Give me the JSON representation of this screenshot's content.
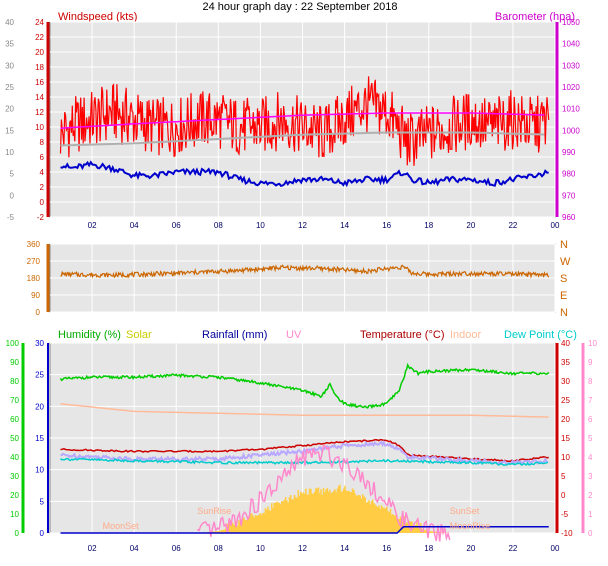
{
  "title": "24 hour graph day : 22 September 2018",
  "chart_data": [
    {
      "type": "line",
      "id": "wind-pressure",
      "labels": {
        "left": "Windspeed (kts)",
        "right": "Barometer (hpa)"
      },
      "left_axis": {
        "range": [
          -2,
          24
        ],
        "ticks": [
          -2,
          0,
          2,
          4,
          6,
          8,
          10,
          12,
          14,
          16,
          18,
          20,
          22,
          24
        ]
      },
      "outer_axis": {
        "range": [
          -5,
          40
        ],
        "ticks": [
          -5,
          0,
          5,
          10,
          15,
          20,
          25,
          30,
          35,
          40
        ]
      },
      "right_axis": {
        "range": [
          960,
          1050
        ],
        "ticks": [
          960,
          970,
          980,
          990,
          1000,
          1010,
          1020,
          1030,
          1040,
          1050
        ],
        "top_tick_label": "1050"
      },
      "x_ticks": [
        "02",
        "04",
        "06",
        "08",
        "10",
        "12",
        "14",
        "16",
        "18",
        "20",
        "22",
        "00"
      ],
      "x_tick_hours": [
        2,
        4,
        6,
        8,
        10,
        12,
        14,
        16,
        18,
        20,
        22,
        24
      ],
      "x_range": [
        0,
        24
      ],
      "grid": true,
      "colors": {
        "gust": "#ff0000",
        "average": "#0000cc",
        "barometer": "#ff00ff",
        "barometer_trend": "#b0b0b0",
        "left_axis": "#cc0000",
        "right_axis": "#cc00cc",
        "outer_axis": "#888888"
      },
      "series": [
        {
          "key": "gust",
          "x": [
            0.5,
            1,
            2,
            3,
            4,
            5,
            6,
            7,
            8,
            9,
            10,
            11,
            12,
            13,
            14,
            15,
            16,
            17,
            18,
            19,
            20,
            21,
            22,
            23,
            23.7
          ],
          "y": [
            9,
            10,
            11,
            12,
            11,
            10,
            10,
            11,
            11,
            10,
            10,
            11,
            10,
            9,
            11,
            13,
            12,
            8,
            9,
            10,
            11,
            10,
            11,
            10,
            11
          ],
          "amp": 4
        },
        {
          "key": "average",
          "x": [
            0.5,
            1,
            2,
            3,
            4,
            5,
            6,
            7,
            8,
            9,
            10,
            11,
            12,
            13,
            14,
            15,
            16,
            16.8,
            17.2,
            18,
            19,
            20,
            21,
            22,
            23,
            23.7
          ],
          "y": [
            5,
            4.5,
            5,
            4.5,
            3.5,
            3.5,
            4,
            4,
            4,
            3,
            2.5,
            2.5,
            3,
            3,
            2.5,
            3,
            3,
            4,
            3,
            2.5,
            3,
            3,
            2.5,
            3,
            3.5,
            4
          ],
          "amp": 0.4
        },
        {
          "key": "barometer",
          "x": [
            0.5,
            4,
            8,
            12,
            16,
            20,
            23.7
          ],
          "y": [
            1001,
            1003,
            1005,
            1007,
            1008,
            1008,
            1007
          ],
          "amp": 0
        },
        {
          "key": "barometer_trend",
          "x": [
            0.5,
            4,
            8,
            12,
            16,
            20,
            23.7
          ],
          "y": [
            993,
            994,
            996,
            998,
            999,
            999,
            998
          ],
          "amp": 0
        }
      ]
    },
    {
      "type": "line",
      "id": "wind-direction",
      "left_axis": {
        "range": [
          0,
          360
        ],
        "ticks": [
          0,
          90,
          180,
          270,
          360
        ]
      },
      "right_labels": [
        "N",
        "W",
        "S",
        "E",
        "N"
      ],
      "x_range": [
        0,
        24
      ],
      "grid": true,
      "colors": {
        "direction": "#cc6600",
        "axis": "#cc6600"
      },
      "series": [
        {
          "key": "direction",
          "x": [
            0.5,
            3,
            6,
            9,
            11,
            13,
            15,
            16.8,
            17.2,
            18,
            20,
            22,
            23.7
          ],
          "y": [
            200,
            195,
            205,
            220,
            235,
            230,
            215,
            240,
            205,
            200,
            205,
            200,
            195
          ],
          "amp": 12
        }
      ]
    },
    {
      "type": "line",
      "id": "temp-humidity",
      "headers": [
        {
          "text": "Humidity (%)",
          "color": "#00aa00"
        },
        {
          "text": "Solar",
          "color": "#cccc00"
        },
        {
          "text": "Rainfall (mm)",
          "color": "#000099"
        },
        {
          "text": "UV",
          "color": "#ff88cc"
        },
        {
          "text": "Temperature (°C)",
          "color": "#aa0000"
        },
        {
          "text": "Indoor",
          "color": "#ffbb99"
        },
        {
          "text": "Dew Point (°C)",
          "color": "#00cccc"
        }
      ],
      "humidity_axis": {
        "range": [
          0,
          100
        ],
        "ticks": [
          0,
          10,
          20,
          30,
          40,
          50,
          60,
          70,
          80,
          90,
          100
        ]
      },
      "temp_axis": {
        "range": [
          -10,
          40
        ],
        "ticks": [
          -10,
          -5,
          0,
          5,
          10,
          15,
          20,
          25,
          30,
          35,
          40
        ]
      },
      "rain_axis": {
        "range": [
          0,
          30
        ],
        "ticks": [
          0,
          5,
          10,
          15,
          20,
          25,
          30
        ]
      },
      "uv_axis": {
        "range": [
          0,
          10
        ],
        "ticks": [
          0,
          1,
          2,
          3,
          4,
          5,
          6,
          7,
          8,
          9,
          10
        ]
      },
      "x_ticks": [
        "02",
        "04",
        "06",
        "08",
        "10",
        "12",
        "14",
        "16",
        "18",
        "20",
        "22",
        "00"
      ],
      "x_tick_hours": [
        2,
        4,
        6,
        8,
        10,
        12,
        14,
        16,
        18,
        20,
        22,
        24
      ],
      "x_range": [
        0,
        24
      ],
      "annotations": [
        {
          "text": "MoonSet",
          "x": 2.5,
          "y": -9
        },
        {
          "text": "SunRise",
          "x": 7,
          "y": -5
        },
        {
          "text": "SunSet",
          "x": 19,
          "y": -5
        },
        {
          "text": "MoonRise",
          "x": 19,
          "y": -9
        }
      ],
      "colors": {
        "humidity": "#00cc00",
        "solar": "#ffcc44",
        "rain": "#0000cc",
        "uv": "#ff88cc",
        "temperature": "#cc0000",
        "indoor": "#ffbb99",
        "dewpoint": "#00cccc",
        "feels": "#b8a8ff"
      },
      "series": [
        {
          "key": "humidity",
          "axis": "humidity",
          "x": [
            0.5,
            2,
            4,
            6,
            8,
            10,
            12,
            12.9,
            13.3,
            13.6,
            14,
            15,
            16,
            16.6,
            17,
            17.5,
            18,
            20,
            22,
            23.7
          ],
          "y": [
            81,
            82,
            82,
            83,
            82,
            79,
            75,
            72,
            78,
            72,
            68,
            66,
            68,
            75,
            88,
            84,
            85,
            86,
            84,
            84
          ],
          "amp": 0.7
        },
        {
          "key": "indoor",
          "axis": "temp",
          "x": [
            0.5,
            4,
            8,
            12,
            16,
            20,
            23.7
          ],
          "y": [
            24,
            22,
            21.5,
            21,
            21,
            21,
            20.5
          ],
          "amp": 0
        },
        {
          "key": "temperature",
          "axis": "temp",
          "x": [
            0.5,
            4,
            8,
            10,
            12,
            14,
            16,
            16.6,
            17,
            20,
            22,
            23.7
          ],
          "y": [
            12,
            11.5,
            11.5,
            12,
            13,
            14,
            14.5,
            13,
            10.5,
            9.5,
            9,
            10
          ],
          "amp": 0.2
        },
        {
          "key": "feels",
          "axis": "temp",
          "x": [
            0.5,
            4,
            8,
            10,
            12,
            14,
            16,
            16.6,
            17,
            20,
            22,
            23.7
          ],
          "y": [
            10.5,
            9.5,
            9.5,
            10.5,
            11.5,
            13,
            13.5,
            12,
            10,
            9,
            8.5,
            9
          ],
          "amp": 0.5
        },
        {
          "key": "dewpoint",
          "axis": "temp",
          "x": [
            0.5,
            4,
            8,
            12,
            16,
            20,
            22,
            23.7
          ],
          "y": [
            9.5,
            9,
            8.5,
            8.5,
            9,
            8.5,
            8,
            8.5
          ],
          "amp": 0.3
        },
        {
          "key": "solar",
          "axis": "temp",
          "type": "area",
          "x": [
            7,
            8,
            9,
            10,
            11,
            12,
            13,
            14,
            15,
            16,
            17,
            18,
            19
          ],
          "y": [
            -10,
            -9.5,
            -8,
            -5.5,
            -3,
            0,
            0,
            1,
            -2,
            -5,
            -8,
            -9.5,
            -10
          ],
          "amp": 2
        },
        {
          "key": "uv",
          "axis": "uv",
          "x": [
            7,
            8,
            9,
            10,
            11,
            12,
            13,
            14,
            15,
            16,
            17,
            18,
            19
          ],
          "y": [
            0,
            0.2,
            0.8,
            1.7,
            2.8,
            4,
            4.2,
            3.7,
            2.8,
            1.5,
            0.5,
            0.1,
            0
          ],
          "amp": 0.5
        },
        {
          "key": "rain",
          "axis": "rain",
          "x": [
            0.5,
            16.5,
            16.8,
            23.7
          ],
          "y": [
            0,
            0,
            1,
            1
          ],
          "amp": 0
        }
      ]
    }
  ]
}
